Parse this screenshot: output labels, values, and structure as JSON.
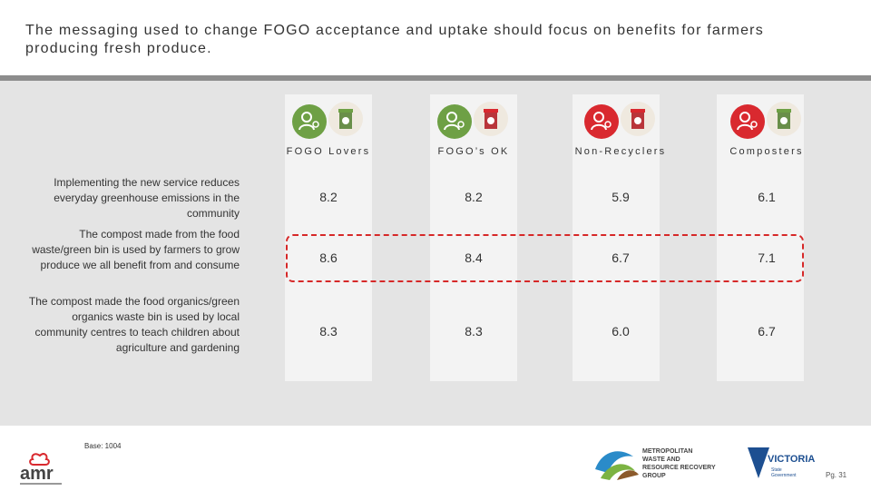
{
  "title": "The messaging used to change FOGO acceptance and uptake should focus on benefits for farmers producing fresh produce.",
  "segments": [
    {
      "name": "FOGO Lovers",
      "person_color": "#6ea045",
      "bin_lid": "#6ea045"
    },
    {
      "name": "FOGO’s OK",
      "person_color": "#6ea045",
      "bin_lid": "#d9292f"
    },
    {
      "name": "Non-Recyclers",
      "person_color": "#d9292f",
      "bin_lid": "#d9292f"
    },
    {
      "name": "Composters",
      "person_color": "#d9292f",
      "bin_lid": "#6ea045"
    }
  ],
  "rows": [
    {
      "label": "Implementing the new service reduces everyday greenhouse emissions in the community",
      "values": [
        "8.2",
        "8.2",
        "5.9",
        "6.1"
      ]
    },
    {
      "label": "The compost made from the food waste/green bin is used by farmers to grow produce we all benefit from and consume",
      "values": [
        "8.6",
        "8.4",
        "6.7",
        "7.1"
      ]
    },
    {
      "label": "The compost made the food organics/green organics waste bin is used by local community centres to teach children about agriculture and gardening",
      "values": [
        "8.3",
        "8.3",
        "6.0",
        "6.7"
      ]
    }
  ],
  "base": "Base: 1004",
  "page_number": "Pg. 31",
  "logos": {
    "amr": "amr",
    "mwrrg": [
      "METROPOLITAN",
      "WASTE AND",
      "RESOURCE RECOVERY",
      "GROUP"
    ],
    "victoria": "VICTORIA",
    "victoria_sub": [
      "State",
      "Government"
    ]
  },
  "colors": {
    "accent_red": "#d62828",
    "green": "#6ea045",
    "red": "#d9292f",
    "header_bar": "#8d8d8d"
  }
}
